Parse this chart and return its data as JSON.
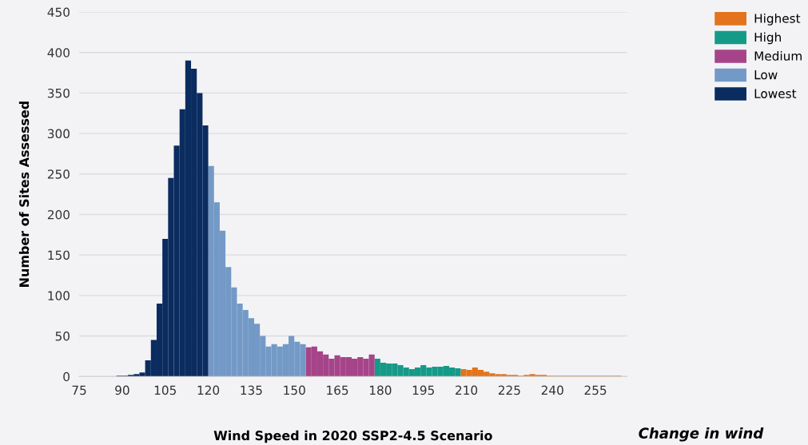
{
  "chart_data": {
    "type": "histogram",
    "xlabel": "Wind Speed in 2020 SSP2-4.5 Scenario",
    "ylabel": "Number of Sites Assessed",
    "xlim": [
      75,
      266
    ],
    "xticks": [
      75,
      90,
      105,
      120,
      135,
      150,
      165,
      180,
      195,
      210,
      225,
      240,
      255
    ],
    "ylim": [
      0,
      450
    ],
    "yticks": [
      0,
      50,
      100,
      150,
      200,
      250,
      300,
      350,
      400,
      450
    ],
    "grid": "y",
    "legend": "top right",
    "annotations": [
      "Change in wind"
    ],
    "bins": [
      88,
      90,
      92,
      94,
      96,
      98,
      100,
      102,
      104,
      106,
      108,
      110,
      112,
      114,
      116,
      118,
      120,
      122,
      124,
      126,
      128,
      130,
      132,
      134,
      136,
      138,
      140,
      142,
      144,
      146,
      148,
      150,
      152,
      154,
      156,
      158,
      160,
      162,
      164,
      166,
      168,
      170,
      172,
      174,
      176,
      178,
      180,
      182,
      184,
      186,
      188,
      190,
      192,
      194,
      196,
      198,
      200,
      202,
      204,
      206,
      208,
      210,
      212,
      214,
      216,
      218,
      220,
      222,
      224,
      226,
      228,
      230,
      232,
      234,
      236,
      238,
      240,
      242,
      244,
      246,
      248,
      250,
      252,
      254,
      256,
      258,
      260,
      262,
      264
    ],
    "series": [
      {
        "name": "Highest",
        "color": "#e3731c",
        "values": [
          null,
          null,
          null,
          null,
          null,
          null,
          null,
          null,
          null,
          null,
          null,
          null,
          null,
          null,
          null,
          null,
          null,
          null,
          null,
          null,
          null,
          null,
          null,
          null,
          null,
          null,
          null,
          null,
          null,
          null,
          null,
          null,
          null,
          null,
          null,
          null,
          null,
          null,
          null,
          null,
          null,
          null,
          null,
          null,
          null,
          null,
          null,
          null,
          null,
          null,
          null,
          null,
          null,
          null,
          null,
          null,
          null,
          null,
          null,
          null,
          9,
          8,
          11,
          8,
          6,
          4,
          3,
          3,
          2,
          2,
          1,
          2,
          3,
          2,
          2,
          1,
          1,
          1,
          1,
          1,
          1,
          1,
          1,
          1,
          1,
          1,
          1,
          1
        ]
      },
      {
        "name": "High",
        "color": "#169a88",
        "values": [
          null,
          null,
          null,
          null,
          null,
          null,
          null,
          null,
          null,
          null,
          null,
          null,
          null,
          null,
          null,
          null,
          null,
          null,
          null,
          null,
          null,
          null,
          null,
          null,
          null,
          null,
          null,
          null,
          null,
          null,
          null,
          null,
          null,
          null,
          null,
          null,
          null,
          null,
          null,
          null,
          null,
          null,
          null,
          null,
          null,
          22,
          17,
          16,
          16,
          14,
          11,
          9,
          11,
          14,
          11,
          12,
          12,
          13,
          11,
          10,
          null,
          null,
          null,
          null,
          null,
          null,
          null,
          null,
          null,
          null,
          null,
          null,
          null,
          null,
          null,
          null,
          null,
          null,
          null,
          null,
          null,
          null,
          null,
          null,
          null,
          null,
          null,
          null
        ]
      },
      {
        "name": "Medium",
        "color": "#a64489",
        "values": [
          null,
          null,
          null,
          null,
          null,
          null,
          null,
          null,
          null,
          null,
          null,
          null,
          null,
          null,
          null,
          null,
          null,
          null,
          null,
          null,
          null,
          null,
          null,
          null,
          null,
          null,
          null,
          null,
          null,
          null,
          null,
          null,
          null,
          36,
          37,
          31,
          27,
          22,
          26,
          24,
          24,
          22,
          24,
          22,
          27,
          null,
          null,
          null,
          null,
          null,
          null,
          null,
          null,
          null,
          null,
          null,
          null,
          null,
          null,
          null,
          null,
          null,
          null,
          null,
          null,
          null,
          null,
          null,
          null,
          null,
          null,
          null,
          null,
          null,
          null,
          null,
          null,
          null,
          null,
          null,
          null,
          null,
          null,
          null,
          null,
          null,
          null,
          null
        ]
      },
      {
        "name": "Low",
        "color": "#7399c6",
        "values": [
          null,
          null,
          null,
          null,
          null,
          null,
          null,
          null,
          null,
          null,
          null,
          null,
          null,
          null,
          null,
          null,
          260,
          215,
          180,
          135,
          110,
          90,
          82,
          72,
          65,
          50,
          37,
          40,
          37,
          40,
          50,
          43,
          40,
          null,
          null,
          null,
          null,
          null,
          null,
          null,
          null,
          null,
          null,
          null,
          null,
          null,
          null,
          null,
          null,
          null,
          null,
          null,
          null,
          null,
          null,
          null,
          null,
          null,
          null,
          null,
          null,
          null,
          null,
          null,
          null,
          null,
          null,
          null,
          null,
          null,
          null,
          null,
          null,
          null,
          null,
          null,
          null,
          null,
          null,
          null,
          null,
          null,
          null,
          null,
          null,
          null,
          null,
          null
        ]
      },
      {
        "name": "Lowest",
        "color": "#0b2c5f",
        "values": [
          1,
          1,
          2,
          3,
          5,
          20,
          45,
          90,
          170,
          245,
          285,
          330,
          390,
          380,
          350,
          310,
          null,
          null,
          null,
          null,
          null,
          null,
          null,
          null,
          null,
          null,
          null,
          null,
          null,
          null,
          null,
          null,
          null,
          null,
          null,
          null,
          null,
          null,
          null,
          null,
          null,
          null,
          null,
          null,
          null,
          null,
          null,
          null,
          null,
          null,
          null,
          null,
          null,
          null,
          null,
          null,
          null,
          null,
          null,
          null,
          null,
          null,
          null,
          null,
          null,
          null,
          null,
          null,
          null,
          null,
          null,
          null,
          null,
          null,
          null,
          null,
          null,
          null,
          null,
          null,
          null,
          null,
          null,
          null,
          null,
          null,
          null,
          null
        ]
      }
    ]
  }
}
